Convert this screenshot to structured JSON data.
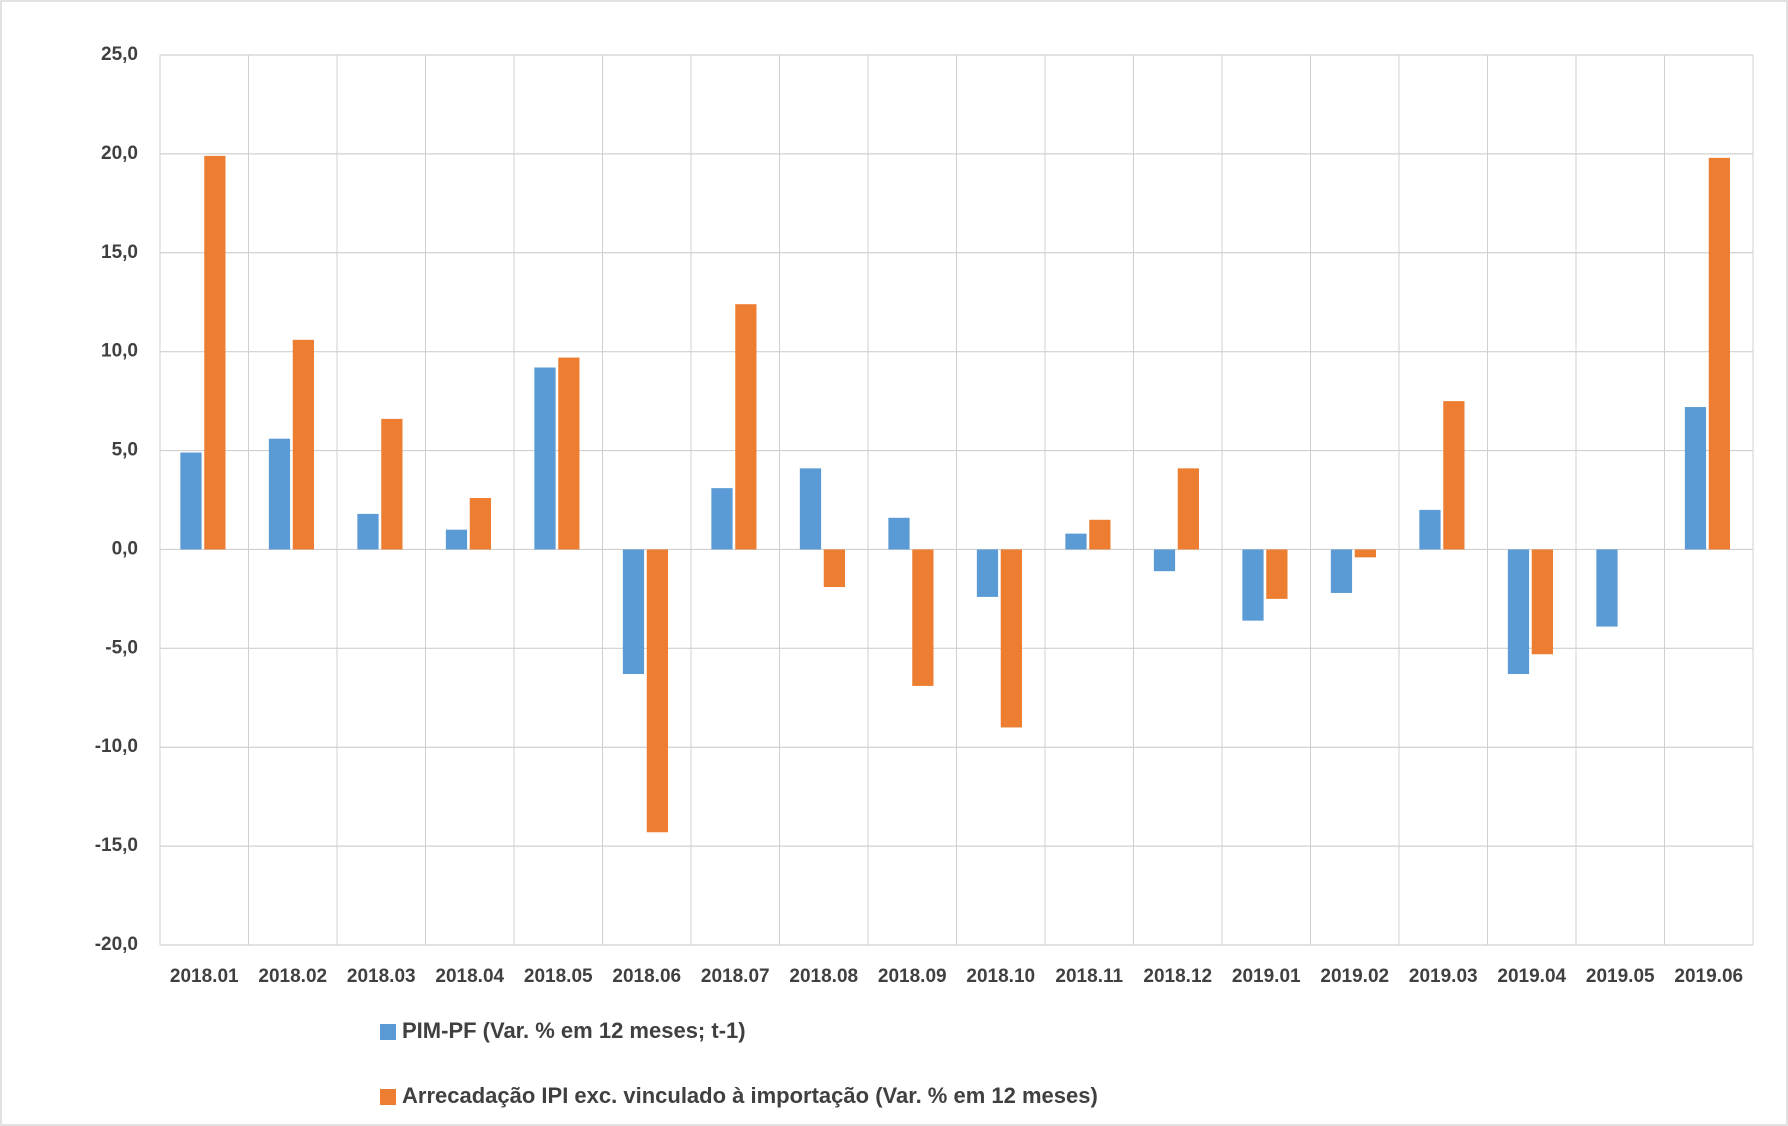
{
  "chart_data": {
    "type": "bar",
    "categories": [
      "2018.01",
      "2018.02",
      "2018.03",
      "2018.04",
      "2018.05",
      "2018.06",
      "2018.07",
      "2018.08",
      "2018.09",
      "2018.10",
      "2018.11",
      "2018.12",
      "2019.01",
      "2019.02",
      "2019.03",
      "2019.04",
      "2019.05",
      "2019.06"
    ],
    "series": [
      {
        "name": "PIM-PF (Var. % em 12 meses; t-1)",
        "color": "#5b9bd5",
        "values": [
          4.9,
          5.6,
          1.8,
          1.0,
          9.2,
          -6.3,
          3.1,
          4.1,
          1.6,
          -2.4,
          0.8,
          -1.1,
          -3.6,
          -2.2,
          2.0,
          -6.3,
          -3.9,
          7.2
        ]
      },
      {
        "name": "Arrecadação IPI exc. vinculado à importação (Var. % em 12 meses)",
        "color": "#ed7d31",
        "values": [
          19.9,
          10.6,
          6.6,
          2.6,
          9.7,
          -14.3,
          12.4,
          -1.9,
          -6.9,
          -9.0,
          1.5,
          4.1,
          -2.5,
          -0.4,
          7.5,
          -5.3,
          null,
          19.8
        ]
      }
    ],
    "ylim": [
      -20,
      25
    ],
    "yticks": [
      {
        "value": 25,
        "label": "25,0"
      },
      {
        "value": 20,
        "label": "20,0"
      },
      {
        "value": 15,
        "label": "15,0"
      },
      {
        "value": 10,
        "label": "10,0"
      },
      {
        "value": 5,
        "label": "5,0"
      },
      {
        "value": 0,
        "label": "0,0"
      },
      {
        "value": -5,
        "label": "-5,0"
      },
      {
        "value": -10,
        "label": "-10,0"
      },
      {
        "value": -15,
        "label": "-15,0"
      },
      {
        "value": -20,
        "label": "-20,0"
      }
    ],
    "grid": true,
    "legend": "bottom"
  }
}
